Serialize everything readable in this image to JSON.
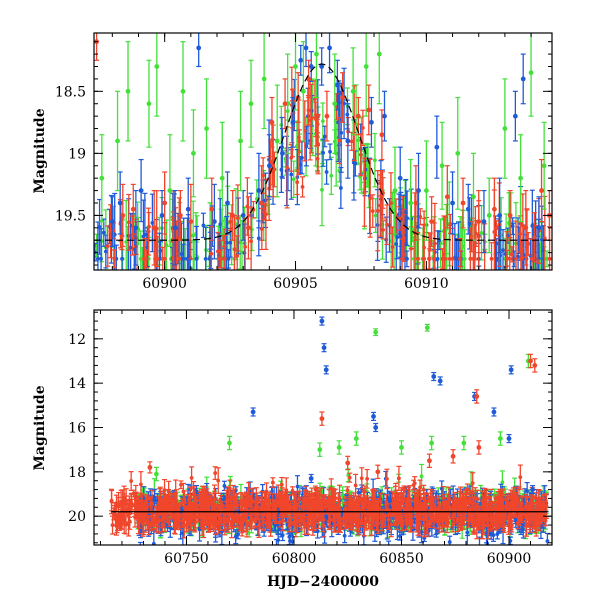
{
  "colors": {
    "blue": "#1f5bd8",
    "green": "#44e03a",
    "red": "#f0462c",
    "model": "#000000"
  },
  "chart_data": [
    {
      "type": "scatter",
      "panel": "top",
      "xlabel": "",
      "ylabel": "Magnitude",
      "xlim": [
        60897.3,
        60914.8
      ],
      "ylim": [
        19.94,
        18.03
      ],
      "y_inverted": true,
      "x_ticks": [
        60900,
        60905,
        60910
      ],
      "x_tick_labels": [
        "60900",
        "60905",
        "60910"
      ],
      "y_ticks": [
        18.5,
        19,
        19.5
      ],
      "y_tick_labels": [
        "18.5",
        "19",
        "19.5"
      ],
      "model_curve": {
        "style": "dashed",
        "peak_x": 60906.0,
        "peak_mag": 18.28,
        "baseline_mag": 19.7,
        "width_days": 2.0
      },
      "series": [
        {
          "name": "",
          "color": "blue",
          "x": [
            60898.0,
            60898.3,
            60898.9,
            60899.1,
            60899.9,
            60900.4,
            60900.9,
            60901.3,
            60901.9,
            60902.4,
            60903.0,
            60903.6,
            60904.0,
            60904.5,
            60904.9,
            60905.2,
            60905.4,
            60905.6,
            60906.0,
            60906.3,
            60906.6,
            60907.0,
            60907.9,
            60908.4,
            60909.0,
            60909.7,
            60910.4,
            60911.0,
            60911.6,
            60912.2,
            60912.8,
            60913.4,
            60913.7,
            60914.3
          ],
          "y": [
            19.55,
            19.4,
            19.6,
            19.3,
            19.5,
            19.6,
            19.45,
            18.15,
            19.55,
            19.4,
            19.5,
            19.3,
            19.1,
            19.0,
            18.75,
            18.25,
            18.15,
            18.3,
            18.3,
            18.15,
            18.45,
            18.9,
            18.75,
            18.7,
            19.2,
            19.3,
            18.95,
            19.4,
            19.45,
            19.55,
            19.5,
            18.7,
            18.4,
            19.6
          ],
          "err": [
            0.2,
            0.25,
            0.3,
            0.25,
            0.2,
            0.3,
            0.25,
            0.15,
            0.3,
            0.25,
            0.2,
            0.3,
            0.25,
            0.2,
            0.2,
            0.12,
            0.15,
            0.12,
            0.15,
            0.2,
            0.2,
            0.3,
            0.2,
            0.2,
            0.25,
            0.3,
            0.25,
            0.25,
            0.2,
            0.25,
            0.3,
            0.2,
            0.2,
            0.25
          ]
        },
        {
          "name": "",
          "color": "green",
          "x": [
            60897.6,
            60898.2,
            60898.6,
            60899.4,
            60899.7,
            60900.2,
            60900.7,
            60901.1,
            60901.6,
            60902.2,
            60902.9,
            60903.3,
            60903.8,
            60904.3,
            60904.7,
            60905.0,
            60905.3,
            60905.8,
            60906.5,
            60907.2,
            60907.7,
            60908.2,
            60908.8,
            60909.4,
            60910.0,
            60910.6,
            60911.2,
            60911.8,
            60912.4,
            60913.0,
            60913.6,
            60914.0,
            60914.5
          ],
          "y": [
            19.2,
            18.9,
            18.5,
            18.6,
            18.3,
            19.3,
            18.5,
            19.0,
            18.8,
            19.2,
            18.9,
            18.6,
            18.4,
            18.9,
            18.6,
            18.3,
            18.5,
            18.2,
            18.6,
            18.5,
            18.3,
            18.2,
            19.3,
            19.4,
            19.3,
            19.1,
            19.0,
            19.35,
            19.5,
            18.8,
            19.2,
            18.35,
            19.1
          ],
          "err": [
            0.35,
            0.4,
            0.4,
            0.35,
            0.4,
            0.45,
            0.4,
            0.35,
            0.4,
            0.45,
            0.4,
            0.35,
            0.4,
            0.45,
            0.4,
            0.35,
            0.4,
            0.35,
            0.4,
            0.35,
            0.4,
            0.4,
            0.35,
            0.35,
            0.4,
            0.35,
            0.45,
            0.35,
            0.3,
            0.4,
            0.35,
            0.35,
            0.35
          ]
        },
        {
          "name": "",
          "color": "red",
          "x": [
            60897.4,
            60898.4,
            60898.8,
            60899.6,
            60900.0,
            60900.6,
            60901.0,
            60901.8,
            60902.6,
            60903.2,
            60903.7,
            60904.1,
            60904.6,
            60905.1,
            60905.5,
            60906.2,
            60906.8,
            60907.4,
            60907.8,
            60908.3,
            60909.1,
            60909.6,
            60910.2,
            60910.8,
            60911.4,
            60912.0,
            60912.6,
            60913.2,
            60913.8,
            60914.4,
            60914.7
          ],
          "y": [
            18.1,
            19.5,
            19.45,
            19.6,
            19.4,
            19.5,
            19.55,
            19.45,
            19.5,
            19.6,
            19.4,
            18.75,
            18.6,
            18.55,
            18.4,
            18.7,
            18.55,
            18.7,
            18.65,
            18.85,
            19.6,
            19.4,
            19.55,
            19.35,
            19.4,
            19.55,
            19.45,
            19.5,
            19.6,
            19.3,
            19.5
          ],
          "err": [
            0.15,
            0.25,
            0.2,
            0.3,
            0.25,
            0.2,
            0.3,
            0.25,
            0.2,
            0.25,
            0.3,
            0.2,
            0.2,
            0.2,
            0.15,
            0.2,
            0.2,
            0.15,
            0.2,
            0.2,
            0.25,
            0.3,
            0.2,
            0.25,
            0.2,
            0.25,
            0.25,
            0.2,
            0.3,
            0.25,
            0.2
          ]
        }
      ]
    },
    {
      "type": "scatter",
      "panel": "bottom",
      "xlabel": "HJD−2400000",
      "ylabel": "Magnitude",
      "xlim": [
        60707,
        60920
      ],
      "ylim": [
        21.3,
        10.7
      ],
      "y_inverted": true,
      "x_ticks": [
        60750,
        60800,
        60850,
        60900
      ],
      "x_tick_labels": [
        "60750",
        "60800",
        "60850",
        "60900"
      ],
      "y_ticks": [
        12,
        14,
        16,
        18,
        20
      ],
      "y_tick_labels": [
        "12",
        "14",
        "16",
        "18",
        "20"
      ],
      "baseline_mag": 19.8,
      "baseline_range": [
        60715,
        60918
      ],
      "outliers": {
        "blue": {
          "x": [
            60781,
            60808,
            60813,
            60814,
            60815,
            60837,
            60838,
            60865,
            60868,
            60884,
            60893,
            60900,
            60901,
            60911
          ],
          "y": [
            15.3,
            18.3,
            11.2,
            12.4,
            13.4,
            15.5,
            16.0,
            13.7,
            13.9,
            14.6,
            15.3,
            16.5,
            13.4,
            18.8
          ]
        },
        "green": {
          "x": [
            60736,
            60770,
            60812,
            60821,
            60829,
            60838,
            60850,
            60862,
            60864,
            60879,
            60896,
            60909
          ],
          "y": [
            18.1,
            16.7,
            17.0,
            16.9,
            16.5,
            11.7,
            16.9,
            11.5,
            16.7,
            16.7,
            16.5,
            13.0
          ],
          "err": [
            0.3,
            0.3,
            0.3,
            0.3,
            0.3,
            0.15,
            0.3,
            0.15,
            0.3,
            0.3,
            0.3,
            0.3
          ]
        },
        "red": {
          "x": [
            60733,
            60813,
            60825,
            60839,
            60863,
            60874,
            60885,
            60886,
            60910,
            60912
          ],
          "y": [
            17.8,
            15.6,
            17.6,
            18.0,
            17.5,
            17.3,
            14.6,
            16.9,
            13.0,
            13.2
          ],
          "err": [
            0.25,
            0.3,
            0.3,
            0.3,
            0.3,
            0.3,
            0.3,
            0.3,
            0.3,
            0.3
          ]
        }
      }
    }
  ]
}
